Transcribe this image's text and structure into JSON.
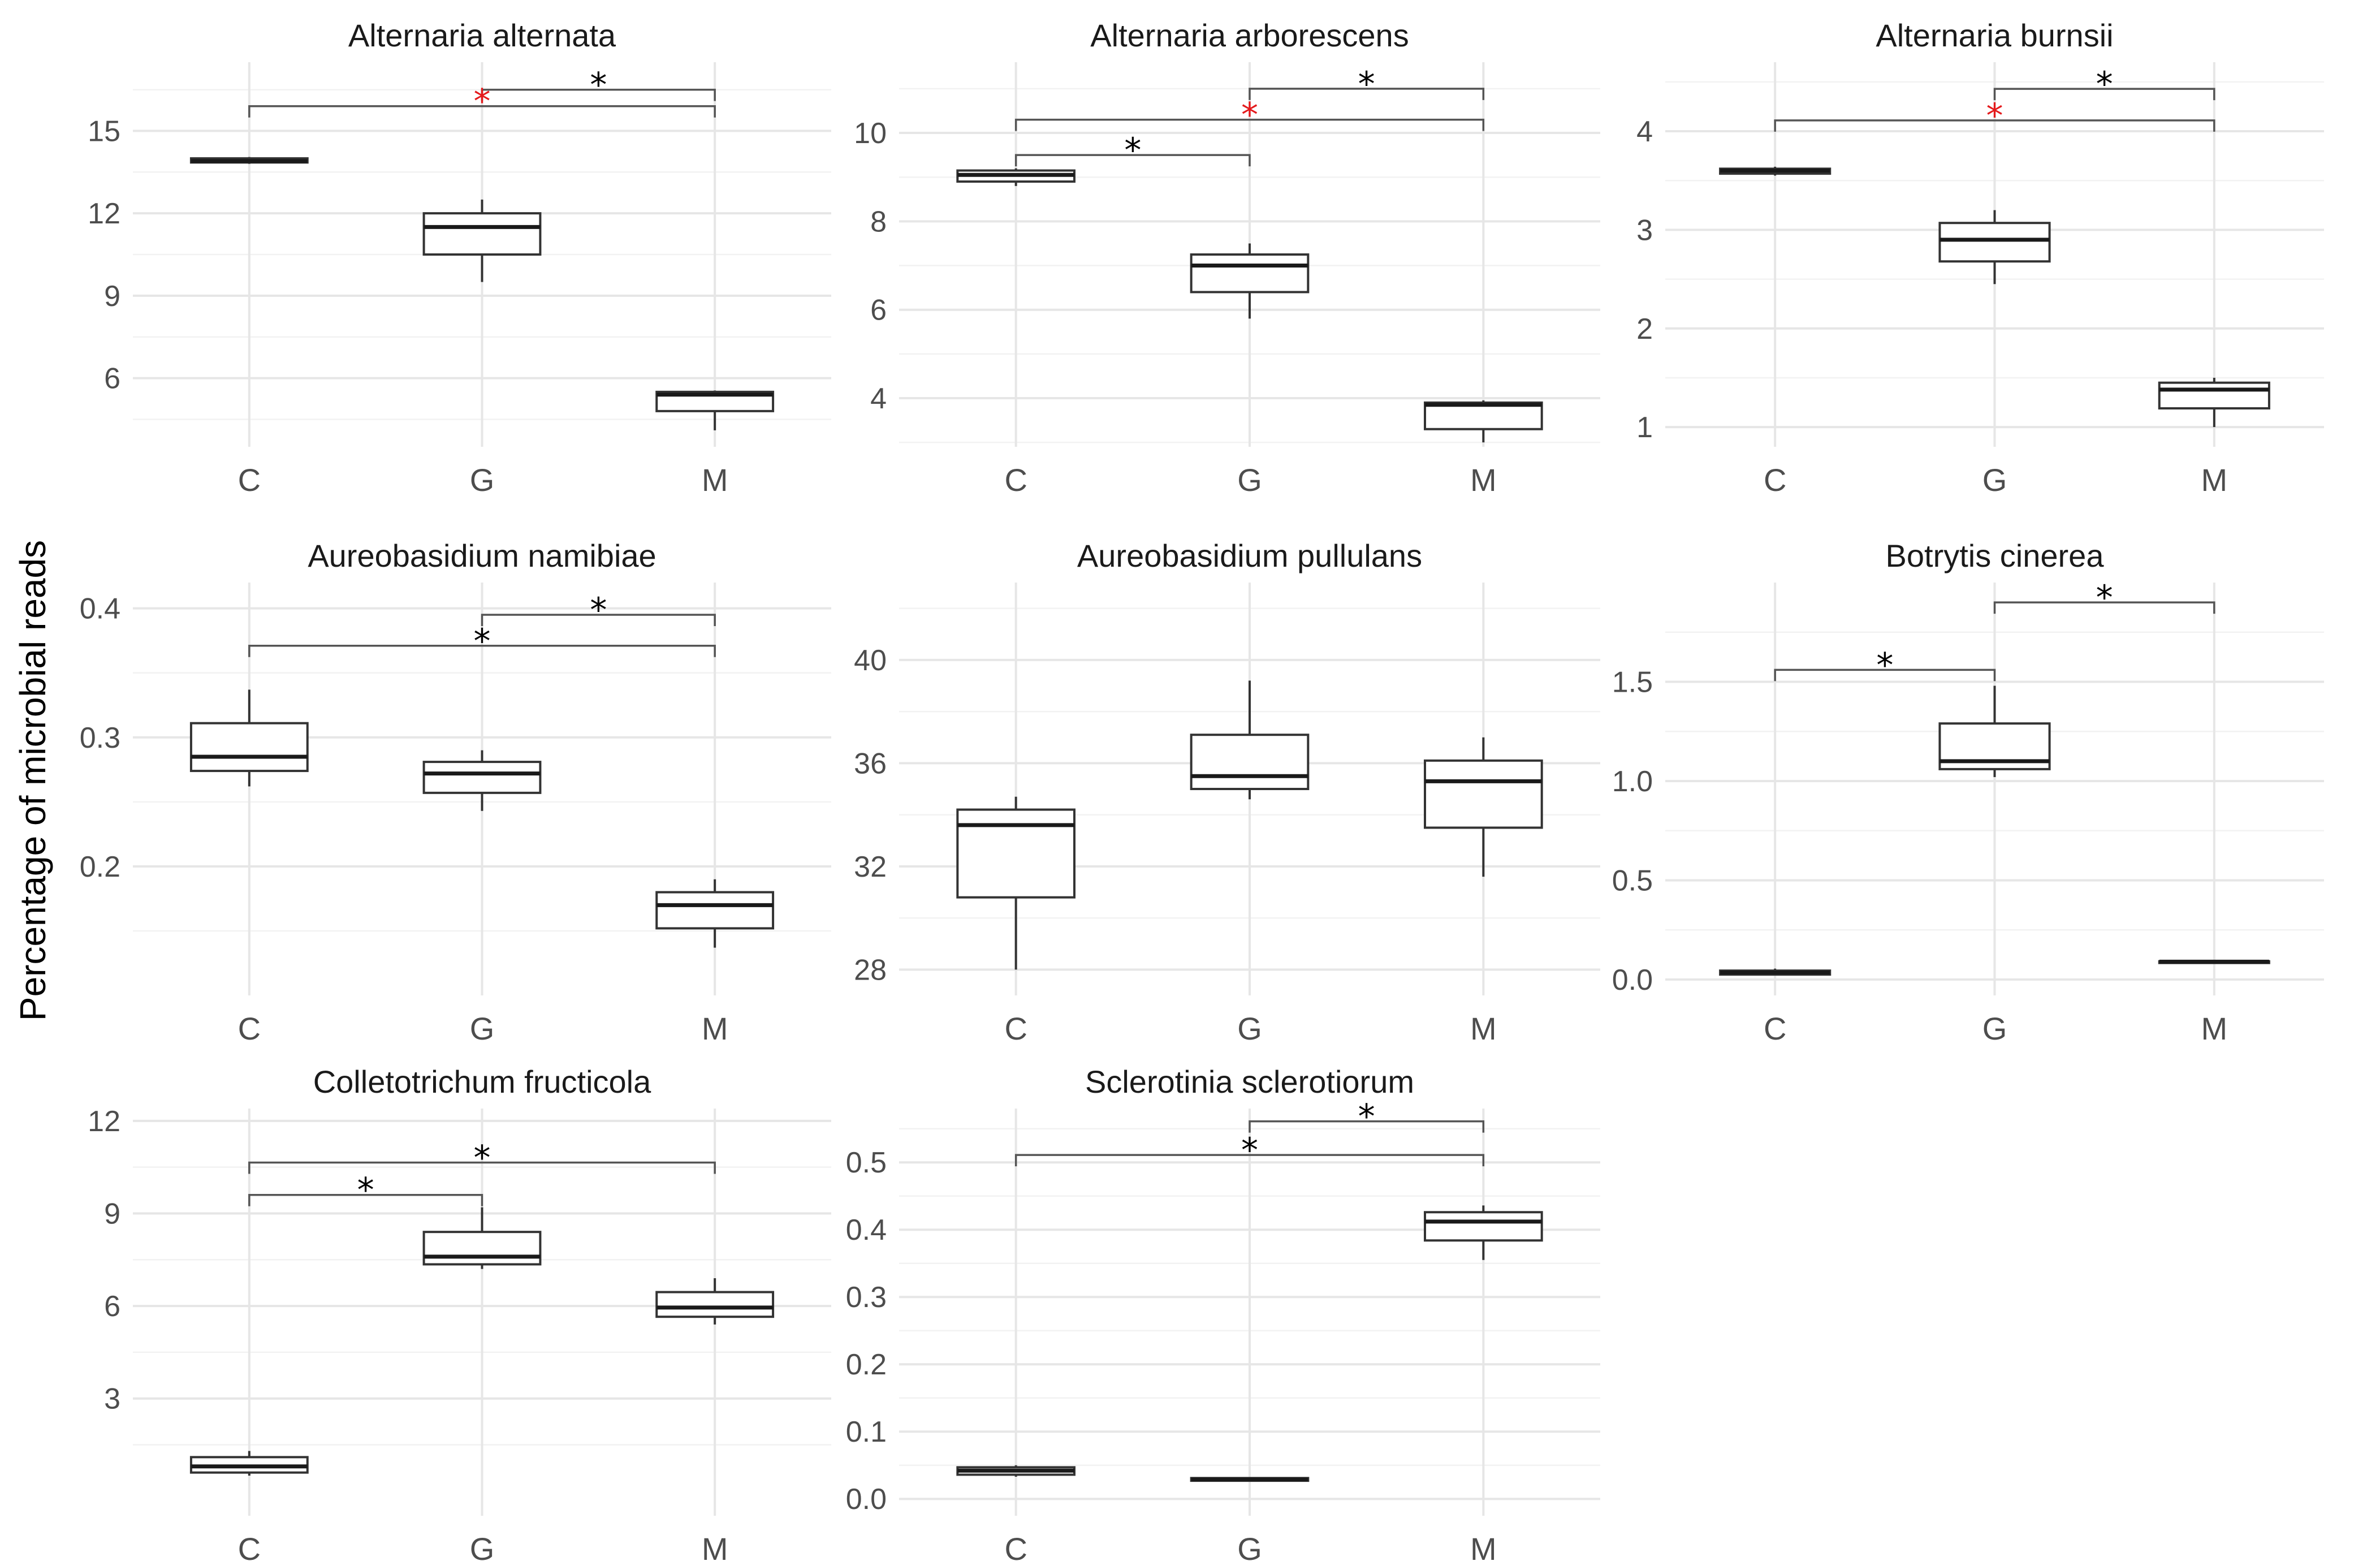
{
  "figure": {
    "ylabel": "Percentage of microbial reads",
    "colors": {
      "box_stroke": "#333333",
      "grid": "#e6e6e6",
      "star_black": "#000000",
      "star_red": "#e41a1c"
    }
  },
  "chart_data": [
    {
      "type": "box",
      "title": "Alternaria alternata",
      "categories": [
        "C",
        "G",
        "M"
      ],
      "ylim": [
        3.5,
        17.5
      ],
      "yticks": [
        "6",
        "9",
        "12",
        "15"
      ],
      "boxes": [
        {
          "min": 13.8,
          "q1": 13.85,
          "median": 13.9,
          "q3": 14.0,
          "max": 14.05
        },
        {
          "min": 9.5,
          "q1": 10.5,
          "median": 11.5,
          "q3": 12.0,
          "max": 12.5
        },
        {
          "min": 4.1,
          "q1": 4.8,
          "median": 5.4,
          "q3": 5.5,
          "max": 5.55
        }
      ],
      "significance": [
        {
          "from": 1,
          "to": 2,
          "y": 16.5,
          "label": "*",
          "color": "black"
        },
        {
          "from": 0,
          "to": 2,
          "y": 15.9,
          "label": "*",
          "color": "red"
        }
      ]
    },
    {
      "type": "box",
      "title": "Alternaria arborescens",
      "categories": [
        "C",
        "G",
        "M"
      ],
      "ylim": [
        2.9,
        11.6
      ],
      "yticks": [
        "4",
        "6",
        "8",
        "10"
      ],
      "boxes": [
        {
          "min": 8.8,
          "q1": 8.9,
          "median": 9.05,
          "q3": 9.15,
          "max": 9.2
        },
        {
          "min": 5.8,
          "q1": 6.4,
          "median": 7.0,
          "q3": 7.25,
          "max": 7.5
        },
        {
          "min": 3.0,
          "q1": 3.3,
          "median": 3.85,
          "q3": 3.9,
          "max": 3.95
        }
      ],
      "significance": [
        {
          "from": 1,
          "to": 2,
          "y": 11.0,
          "label": "*",
          "color": "black"
        },
        {
          "from": 0,
          "to": 2,
          "y": 10.3,
          "label": "*",
          "color": "red"
        },
        {
          "from": 0,
          "to": 1,
          "y": 9.5,
          "label": "*",
          "color": "black"
        }
      ]
    },
    {
      "type": "box",
      "title": "Alternaria burnsii",
      "categories": [
        "C",
        "G",
        "M"
      ],
      "ylim": [
        0.8,
        4.7
      ],
      "yticks": [
        "1",
        "2",
        "3",
        "4"
      ],
      "boxes": [
        {
          "min": 3.55,
          "q1": 3.57,
          "median": 3.6,
          "q3": 3.62,
          "max": 3.64
        },
        {
          "min": 2.45,
          "q1": 2.68,
          "median": 2.9,
          "q3": 3.07,
          "max": 3.2
        },
        {
          "min": 1.0,
          "q1": 1.19,
          "median": 1.38,
          "q3": 1.45,
          "max": 1.5
        }
      ],
      "significance": [
        {
          "from": 1,
          "to": 2,
          "y": 4.43,
          "label": "*",
          "color": "black"
        },
        {
          "from": 0,
          "to": 2,
          "y": 4.11,
          "label": "*",
          "color": "red"
        }
      ]
    },
    {
      "type": "box",
      "title": "Aureobasidium namibiae",
      "categories": [
        "C",
        "G",
        "M"
      ],
      "ylim": [
        0.1,
        0.42
      ],
      "yticks": [
        "0.2",
        "0.3",
        "0.4"
      ],
      "boxes": [
        {
          "min": 0.262,
          "q1": 0.274,
          "median": 0.285,
          "q3": 0.311,
          "max": 0.337
        },
        {
          "min": 0.243,
          "q1": 0.257,
          "median": 0.272,
          "q3": 0.281,
          "max": 0.29
        },
        {
          "min": 0.137,
          "q1": 0.152,
          "median": 0.17,
          "q3": 0.18,
          "max": 0.19
        }
      ],
      "significance": [
        {
          "from": 1,
          "to": 2,
          "y": 0.395,
          "label": "*",
          "color": "black"
        },
        {
          "from": 0,
          "to": 2,
          "y": 0.371,
          "label": "*",
          "color": "black"
        }
      ]
    },
    {
      "type": "box",
      "title": "Aureobasidium pullulans",
      "categories": [
        "C",
        "G",
        "M"
      ],
      "ylim": [
        27.0,
        43.0
      ],
      "yticks": [
        "28",
        "32",
        "36",
        "40"
      ],
      "boxes": [
        {
          "min": 28.0,
          "q1": 30.8,
          "median": 33.6,
          "q3": 34.2,
          "max": 34.7
        },
        {
          "min": 34.6,
          "q1": 35.0,
          "median": 35.5,
          "q3": 37.1,
          "max": 39.2
        },
        {
          "min": 31.6,
          "q1": 33.5,
          "median": 35.3,
          "q3": 36.1,
          "max": 37.0
        }
      ],
      "significance": []
    },
    {
      "type": "box",
      "title": "Botrytis cinerea",
      "categories": [
        "C",
        "G",
        "M"
      ],
      "ylim": [
        -0.08,
        2.0
      ],
      "yticks": [
        "0.0",
        "0.5",
        "1.0",
        "1.5"
      ],
      "boxes": [
        {
          "min": 0.02,
          "q1": 0.025,
          "median": 0.035,
          "q3": 0.045,
          "max": 0.055
        },
        {
          "min": 1.02,
          "q1": 1.06,
          "median": 1.1,
          "q3": 1.29,
          "max": 1.48
        },
        {
          "min": 0.085,
          "q1": 0.088,
          "median": 0.09,
          "q3": 0.092,
          "max": 0.094
        }
      ],
      "significance": [
        {
          "from": 1,
          "to": 2,
          "y": 1.9,
          "label": "*",
          "color": "black"
        },
        {
          "from": 0,
          "to": 1,
          "y": 1.56,
          "label": "*",
          "color": "black"
        }
      ]
    },
    {
      "type": "box",
      "title": "Colletotrichum fructicola",
      "categories": [
        "C",
        "G",
        "M"
      ],
      "ylim": [
        -0.8,
        12.4
      ],
      "yticks": [
        "3",
        "6",
        "9",
        "12"
      ],
      "boxes": [
        {
          "min": 0.5,
          "q1": 0.6,
          "median": 0.8,
          "q3": 1.1,
          "max": 1.3
        },
        {
          "min": 7.2,
          "q1": 7.35,
          "median": 7.6,
          "q3": 8.4,
          "max": 9.2
        },
        {
          "min": 5.4,
          "q1": 5.65,
          "median": 5.95,
          "q3": 6.45,
          "max": 6.9
        }
      ],
      "significance": [
        {
          "from": 0,
          "to": 2,
          "y": 10.65,
          "label": "*",
          "color": "black"
        },
        {
          "from": 0,
          "to": 1,
          "y": 9.6,
          "label": "*",
          "color": "black"
        }
      ]
    },
    {
      "type": "box",
      "title": "Sclerotinia sclerotiorum",
      "categories": [
        "C",
        "G",
        "M"
      ],
      "ylim": [
        -0.025,
        0.58
      ],
      "yticks": [
        "0.0",
        "0.1",
        "0.2",
        "0.3",
        "0.4",
        "0.5"
      ],
      "boxes": [
        {
          "min": 0.033,
          "q1": 0.036,
          "median": 0.042,
          "q3": 0.047,
          "max": 0.05
        },
        {
          "min": 0.026,
          "q1": 0.027,
          "median": 0.029,
          "q3": 0.031,
          "max": 0.032
        },
        {
          "min": 0.355,
          "q1": 0.384,
          "median": 0.412,
          "q3": 0.426,
          "max": 0.436
        }
      ],
      "significance": [
        {
          "from": 1,
          "to": 2,
          "y": 0.561,
          "label": "*",
          "color": "black"
        },
        {
          "from": 0,
          "to": 2,
          "y": 0.511,
          "label": "*",
          "color": "black"
        }
      ]
    }
  ]
}
